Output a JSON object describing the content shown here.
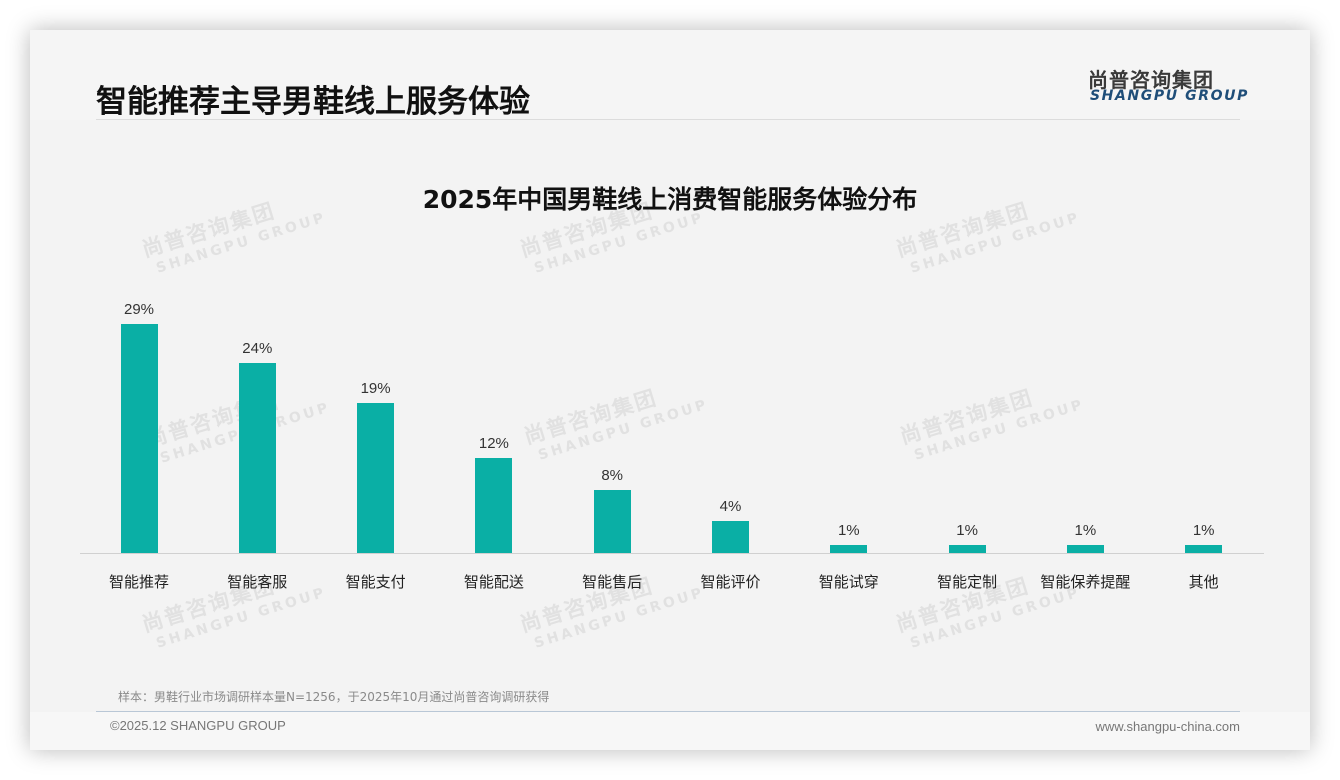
{
  "header": {
    "title": "智能推荐主导男鞋线上服务体验",
    "logo_cn": "尚普咨询集团",
    "logo_en": "SHANGPU GROUP"
  },
  "watermark": {
    "cn": "尚普咨询集团",
    "en": "SHANGPU GROUP"
  },
  "chart_data": {
    "type": "bar",
    "title": "2025年中国男鞋线上消费智能服务体验分布",
    "categories": [
      "智能推荐",
      "智能客服",
      "智能支付",
      "智能配送",
      "智能售后",
      "智能评价",
      "智能试穿",
      "智能定制",
      "智能保养提醒",
      "其他"
    ],
    "values": [
      29,
      24,
      19,
      12,
      8,
      4,
      1,
      1,
      1,
      1
    ],
    "value_labels": [
      "29%",
      "24%",
      "19%",
      "12%",
      "8%",
      "4%",
      "1%",
      "1%",
      "1%",
      "1%"
    ],
    "unit": "%",
    "xlabel": "",
    "ylabel": "",
    "ylim": [
      0,
      30
    ],
    "grid": false,
    "legend": null,
    "bar_color": "#0aafa5"
  },
  "note": "样本：男鞋行业市场调研样本量N=1256，于2025年10月通过尚普咨询调研获得",
  "footer": {
    "copyright": "©2025.12 SHANGPU GROUP",
    "website": "www.shangpu-china.com"
  }
}
